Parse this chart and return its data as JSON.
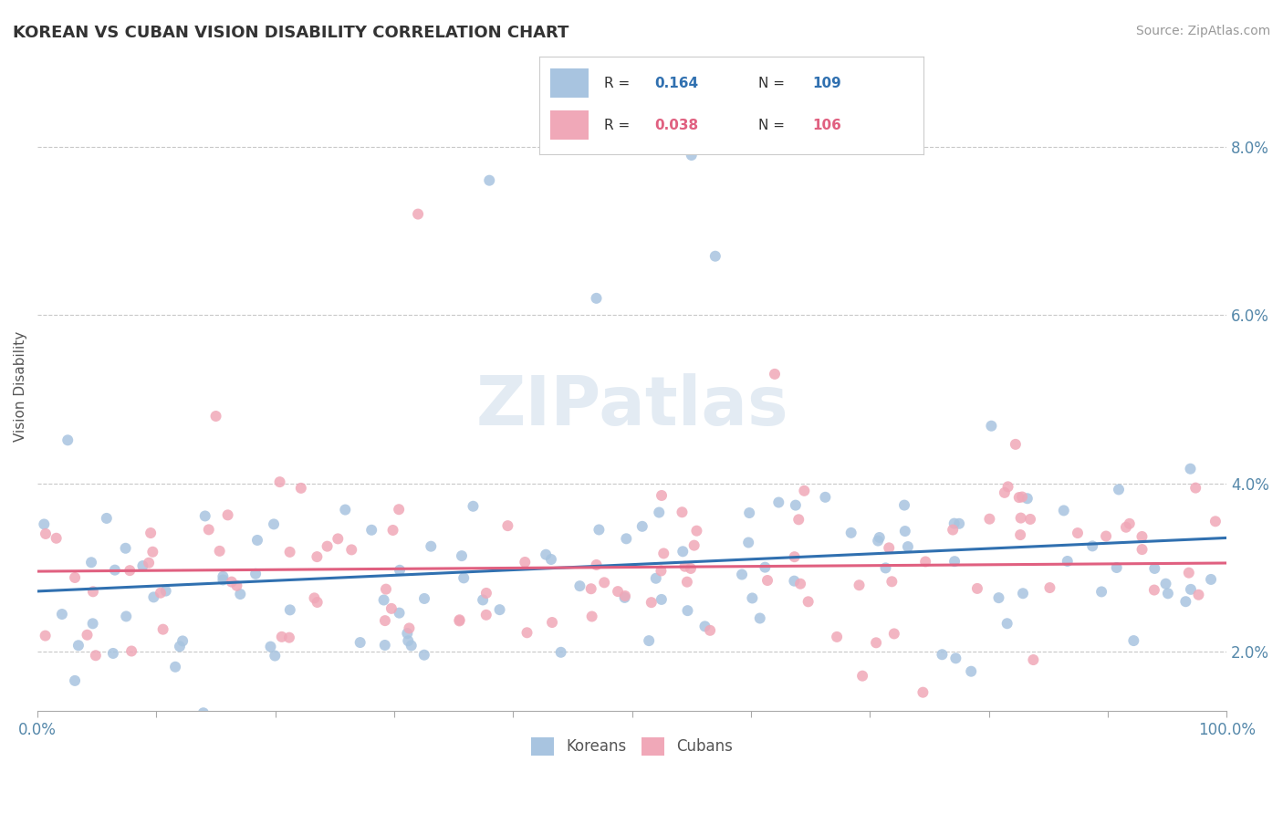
{
  "title": "KOREAN VS CUBAN VISION DISABILITY CORRELATION CHART",
  "source": "Source: ZipAtlas.com",
  "ylabel": "Vision Disability",
  "legend_korean": "Koreans",
  "legend_cuban": "Cubans",
  "korean_R": "0.164",
  "korean_N": "109",
  "cuban_R": "0.038",
  "cuban_N": "106",
  "korean_color": "#a8c4e0",
  "cuban_color": "#f0a8b8",
  "korean_line_color": "#3070b0",
  "cuban_line_color": "#e06080",
  "background_color": "#ffffff",
  "watermark": "ZIPatlas",
  "yticks": [
    2.0,
    4.0,
    6.0,
    8.0
  ],
  "ylim": [
    1.3,
    9.0
  ],
  "xlim": [
    0.0,
    100.0
  ]
}
